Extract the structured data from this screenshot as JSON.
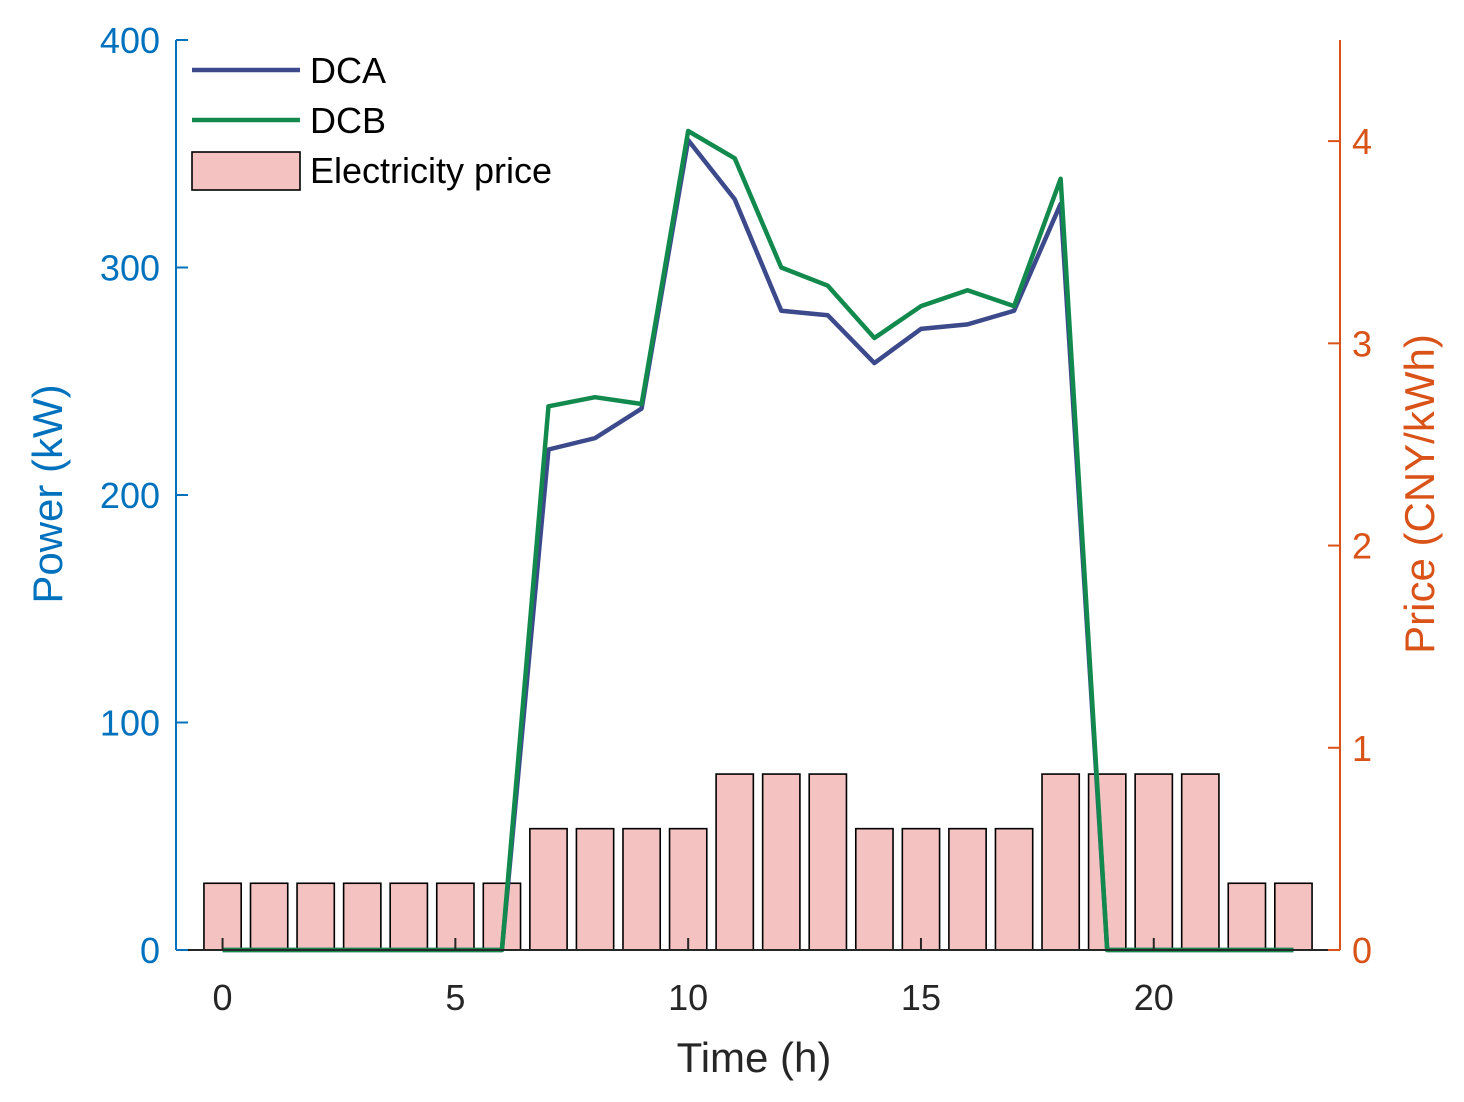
{
  "chart_data": {
    "type": "line+bar",
    "xlabel": "Time (h)",
    "ylabel_left": "Power (kW)",
    "ylabel_right": "Price (CNY/kWh)",
    "xlim": [
      -1,
      24
    ],
    "ylim_left": [
      0,
      400
    ],
    "ylim_right": [
      0,
      4.5
    ],
    "x_ticks": [
      0,
      5,
      10,
      15,
      20
    ],
    "y_left_ticks": [
      0,
      100,
      200,
      300,
      400
    ],
    "y_right_ticks": [
      0,
      1,
      2,
      3,
      4
    ],
    "hours": [
      0,
      1,
      2,
      3,
      4,
      5,
      6,
      7,
      8,
      9,
      10,
      11,
      12,
      13,
      14,
      15,
      16,
      17,
      18,
      19,
      20,
      21,
      22,
      23
    ],
    "series": [
      {
        "name": "DCA",
        "axis": "left",
        "color": "#3c4a8c",
        "values": [
          0,
          0,
          0,
          0,
          0,
          0,
          0,
          220,
          225,
          238,
          356,
          330,
          281,
          279,
          258,
          273,
          275,
          281,
          328,
          0,
          0,
          0,
          0,
          0
        ]
      },
      {
        "name": "DCB",
        "axis": "left",
        "color": "#138a4d",
        "values": [
          0,
          0,
          0,
          0,
          0,
          0,
          0,
          239,
          243,
          240,
          360,
          348,
          300,
          292,
          269,
          283,
          290,
          283,
          339,
          0,
          0,
          0,
          0,
          0
        ]
      },
      {
        "name": "Electricity price",
        "axis": "right",
        "type": "bar",
        "color": "#f4c2c0",
        "values": [
          0.33,
          0.33,
          0.33,
          0.33,
          0.33,
          0.33,
          0.33,
          0.6,
          0.6,
          0.6,
          0.6,
          0.87,
          0.87,
          0.87,
          0.6,
          0.6,
          0.6,
          0.6,
          0.87,
          0.87,
          0.87,
          0.87,
          0.33,
          0.33
        ]
      }
    ],
    "legend_position": "top-left",
    "colors": {
      "left_axis": "#0072bd",
      "right_axis": "#d95319",
      "bar_edge": "#000000"
    }
  }
}
